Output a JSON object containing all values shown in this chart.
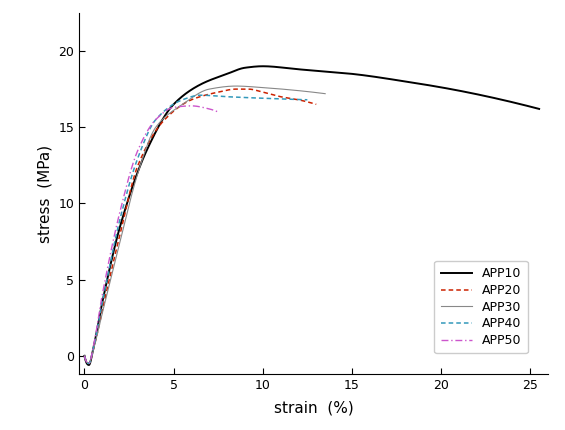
{
  "title": "",
  "xlabel": "strain  (%)",
  "ylabel": "stress  (MPa)",
  "xlim": [
    -0.3,
    26
  ],
  "ylim": [
    -1.2,
    22.5
  ],
  "xticks": [
    0,
    5,
    10,
    15,
    20,
    25
  ],
  "yticks": [
    0,
    5,
    10,
    15,
    20
  ],
  "curves": [
    {
      "label": "APP10",
      "color": "#000000",
      "linestyle": "solid",
      "linewidth": 1.4,
      "dip_x": 0.25,
      "dip_y": -0.6,
      "points_x": [
        0.0,
        0.25,
        0.5,
        1.0,
        2.0,
        3.5,
        5.0,
        6.5,
        8.0,
        9.0,
        10.0,
        12.0,
        15.0,
        18.0,
        21.0,
        25.5
      ],
      "points_y": [
        0.0,
        -0.6,
        0.5,
        3.5,
        8.5,
        13.5,
        16.5,
        17.8,
        18.5,
        18.9,
        19.0,
        18.8,
        18.5,
        18.0,
        17.4,
        16.2
      ]
    },
    {
      "label": "APP20",
      "color": "#cc2200",
      "linestyle": [
        0,
        [
          3,
          2
        ]
      ],
      "linewidth": 1.1,
      "points_x": [
        0.0,
        0.25,
        0.5,
        1.0,
        2.0,
        3.0,
        4.5,
        6.0,
        7.5,
        8.5,
        9.2,
        10.0,
        11.0,
        12.0,
        13.0
      ],
      "points_y": [
        0.0,
        -0.5,
        0.4,
        3.0,
        8.0,
        12.5,
        15.5,
        16.8,
        17.3,
        17.5,
        17.5,
        17.3,
        17.0,
        16.8,
        16.5
      ]
    },
    {
      "label": "APP30",
      "color": "#888888",
      "linestyle": "solid",
      "linewidth": 0.8,
      "points_x": [
        0.0,
        0.25,
        0.5,
        1.0,
        2.0,
        3.0,
        4.0,
        5.5,
        7.0,
        8.5,
        10.0,
        12.0,
        13.5
      ],
      "points_y": [
        0.0,
        -0.5,
        0.4,
        2.8,
        7.5,
        12.0,
        15.0,
        16.5,
        17.5,
        17.7,
        17.6,
        17.4,
        17.2
      ]
    },
    {
      "label": "APP40",
      "color": "#3399bb",
      "linestyle": [
        0,
        [
          3,
          2
        ]
      ],
      "linewidth": 1.1,
      "points_x": [
        0.0,
        0.25,
        0.5,
        1.0,
        2.0,
        3.0,
        4.0,
        5.5,
        6.5,
        8.0,
        10.0,
        12.5
      ],
      "points_y": [
        0.0,
        -0.5,
        0.5,
        3.5,
        9.0,
        13.0,
        15.5,
        16.8,
        17.1,
        17.0,
        16.9,
        16.8
      ]
    },
    {
      "label": "APP50",
      "color": "#cc55cc",
      "linestyle": [
        0,
        [
          5,
          2,
          1,
          2
        ]
      ],
      "linewidth": 1.0,
      "points_x": [
        0.0,
        0.25,
        0.5,
        1.0,
        2.0,
        3.0,
        4.0,
        5.0,
        6.0,
        7.0,
        7.5
      ],
      "points_y": [
        0.0,
        -0.5,
        0.6,
        4.0,
        9.5,
        13.5,
        15.5,
        16.3,
        16.4,
        16.2,
        16.0
      ]
    }
  ],
  "legend_fontsize": 9,
  "tick_fontsize": 9,
  "label_fontsize": 11,
  "background_color": "#ffffff"
}
